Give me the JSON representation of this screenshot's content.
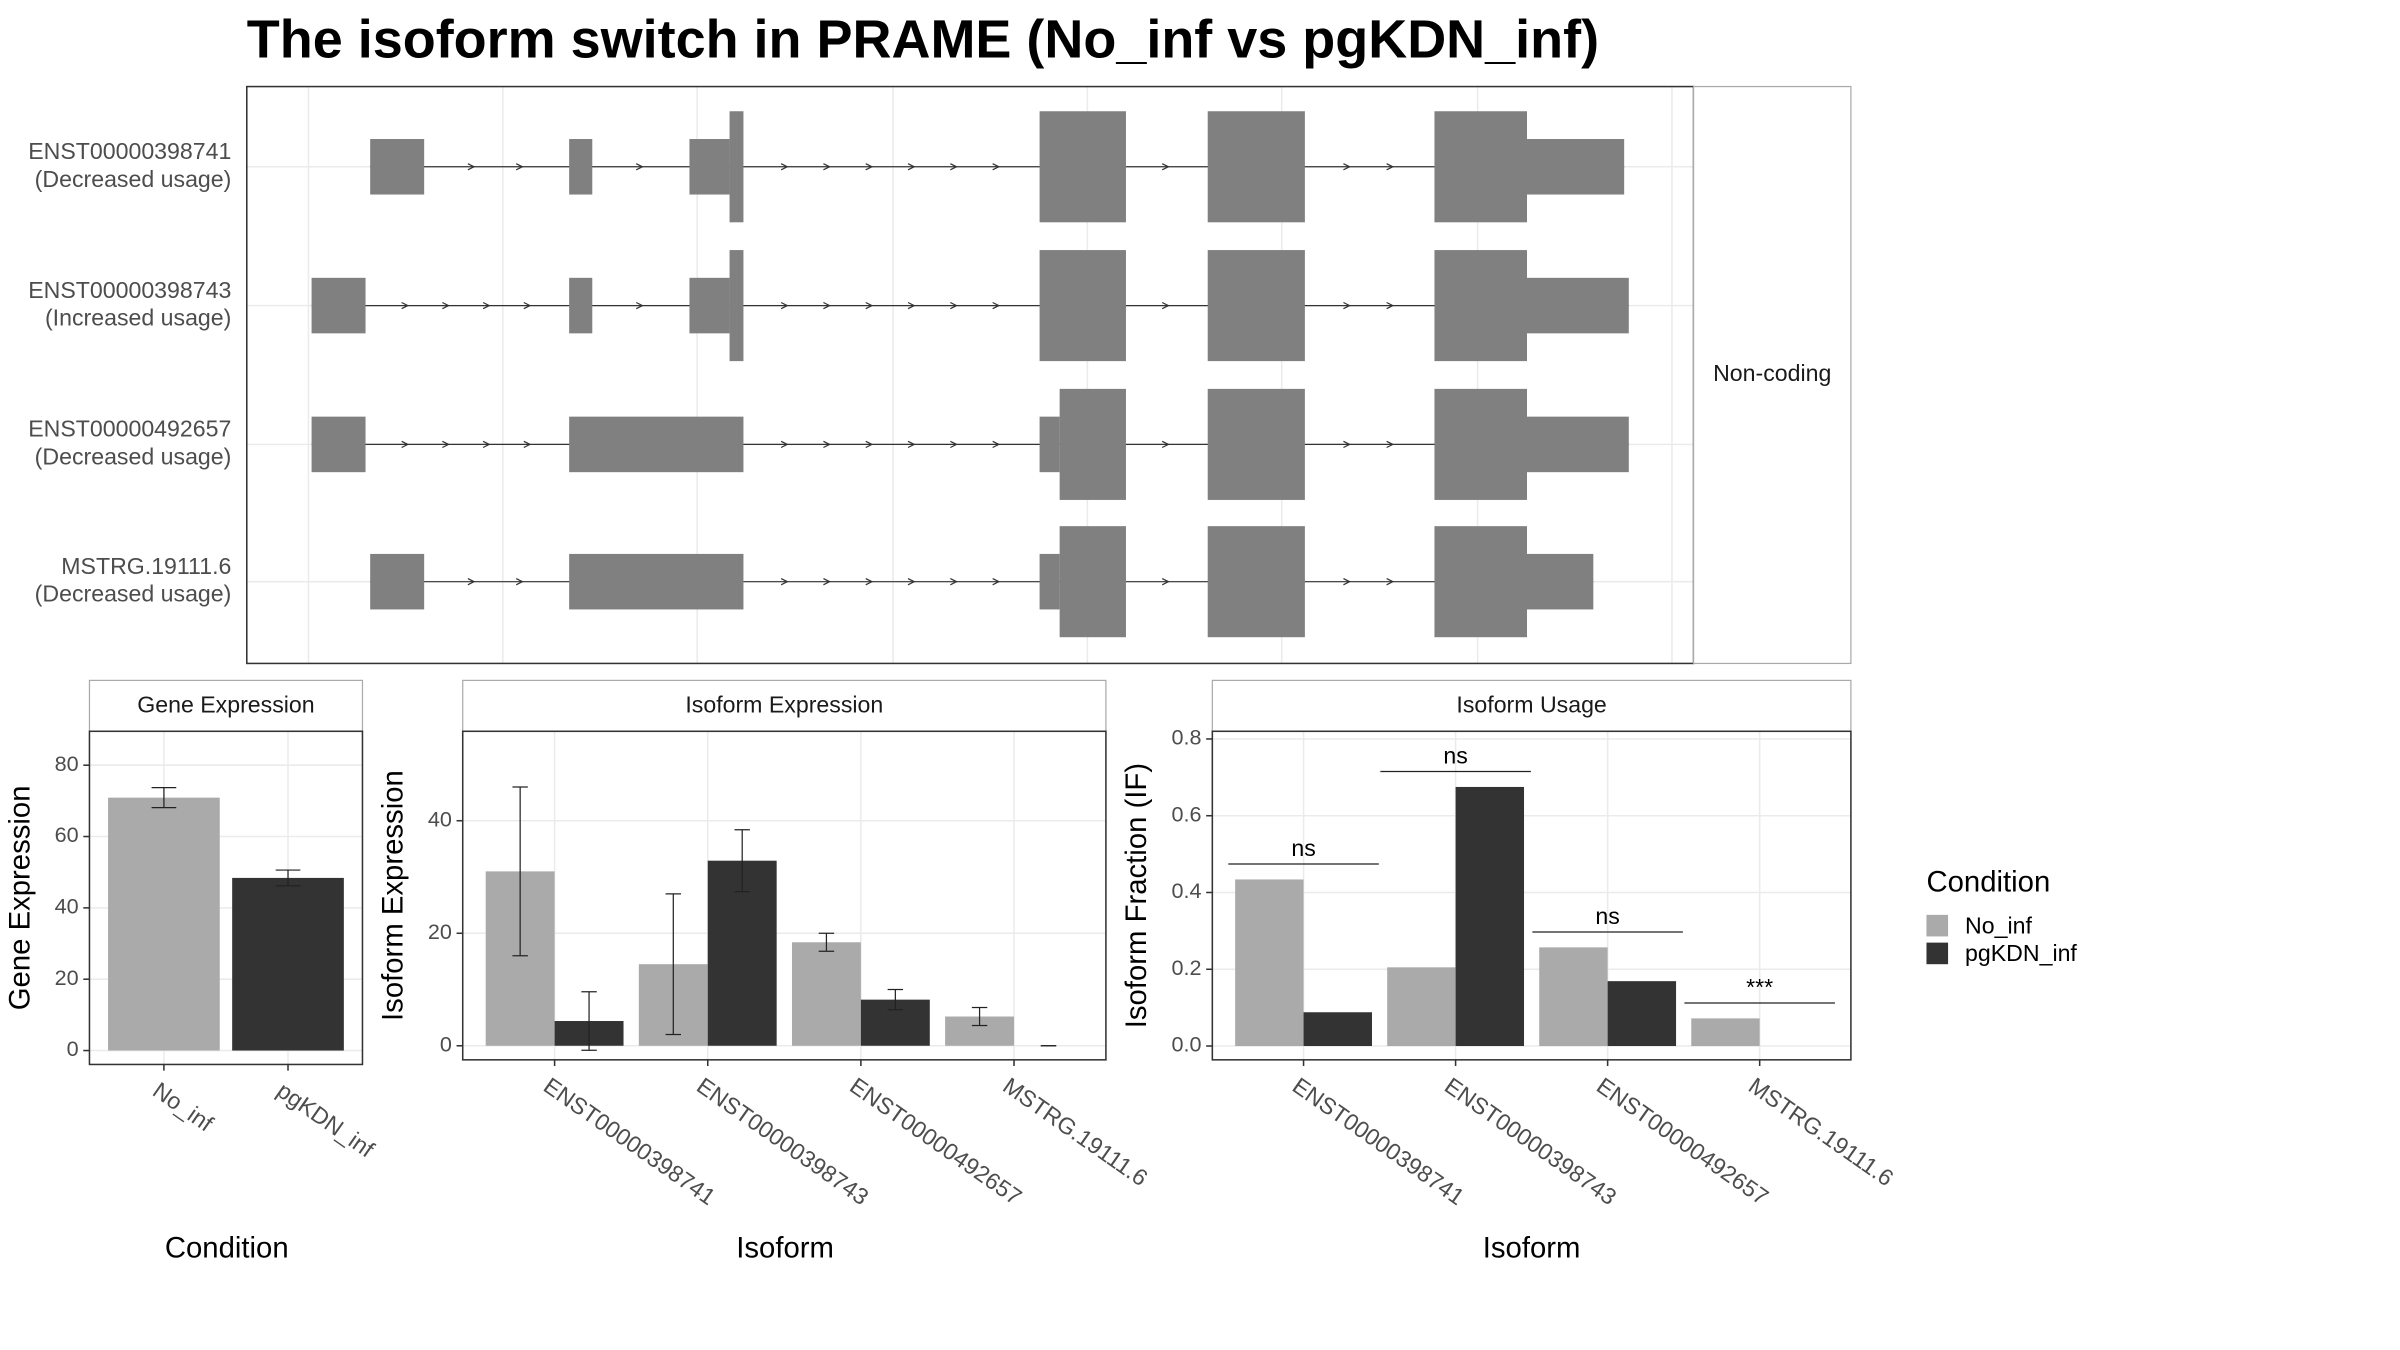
{
  "title": "The isoform switch in PRAME (No_inf vs pgKDN_inf)",
  "legend": {
    "title": "Condition"
  },
  "chart_data": [
    {
      "type": "transcripts",
      "facet": "Non-coding",
      "transcripts": [
        {
          "name": "ENST00000398741",
          "usage": "(Decreased usage)"
        },
        {
          "name": "ENST00000398743",
          "usage": "(Increased usage)"
        },
        {
          "name": "ENST00000492657",
          "usage": "(Decreased usage)"
        },
        {
          "name": "MSTRG.19111.6",
          "usage": "(Decreased usage)"
        }
      ]
    },
    {
      "type": "bar",
      "facet": "Gene Expression",
      "xlabel": "Condition",
      "ylabel": "Gene Expression",
      "categories": [
        "No_inf",
        "pgKDN_inf"
      ],
      "values": [
        70.9,
        48.4
      ],
      "errors": [
        2.8,
        2.2
      ],
      "colors": [
        "#aaaaaa",
        "#333333"
      ],
      "ylim": [
        -3.9,
        89.5
      ],
      "yticks": [
        0,
        20,
        40,
        60,
        80
      ],
      "grid": true
    },
    {
      "type": "grouped_bar",
      "facet": "Isoform Expression",
      "xlabel": "Isoform",
      "ylabel": "Isoform Expression",
      "categories": [
        "ENST00000398741",
        "ENST00000398743",
        "ENST00000492657",
        "MSTRG.19111.6"
      ],
      "series": [
        {
          "name": "No_inf",
          "color": "#aaaaaa",
          "values": [
            31.0,
            14.5,
            18.4,
            5.2
          ],
          "errors": [
            15.0,
            12.5,
            1.6,
            1.6
          ]
        },
        {
          "name": "pgKDN_inf",
          "color": "#333333",
          "values": [
            4.4,
            32.9,
            8.2,
            0
          ],
          "errors": [
            5.2,
            5.5,
            1.8,
            0
          ]
        }
      ],
      "ylim": [
        -2.5,
        55.9
      ],
      "yticks": [
        0,
        20,
        40
      ],
      "grid": true
    },
    {
      "type": "grouped_bar",
      "facet": "Isoform Usage",
      "xlabel": "Isoform",
      "ylabel": "Isoform Fraction (IF)",
      "categories": [
        "ENST00000398741",
        "ENST00000398743",
        "ENST00000492657",
        "MSTRG.19111.6"
      ],
      "series": [
        {
          "name": "No_inf",
          "color": "#aaaaaa",
          "values": [
            0.434,
            0.205,
            0.257,
            0.072
          ]
        },
        {
          "name": "pgKDN_inf",
          "color": "#333333",
          "values": [
            0.088,
            0.675,
            0.169,
            0
          ]
        }
      ],
      "annotations": [
        "ns",
        "ns",
        "ns",
        "***"
      ],
      "ylim": [
        -0.036,
        0.82
      ],
      "yticks": [
        {
          "value": 0,
          "label": "0.0"
        },
        0.2,
        0.4,
        0.6,
        0.8
      ],
      "grid": true
    }
  ]
}
